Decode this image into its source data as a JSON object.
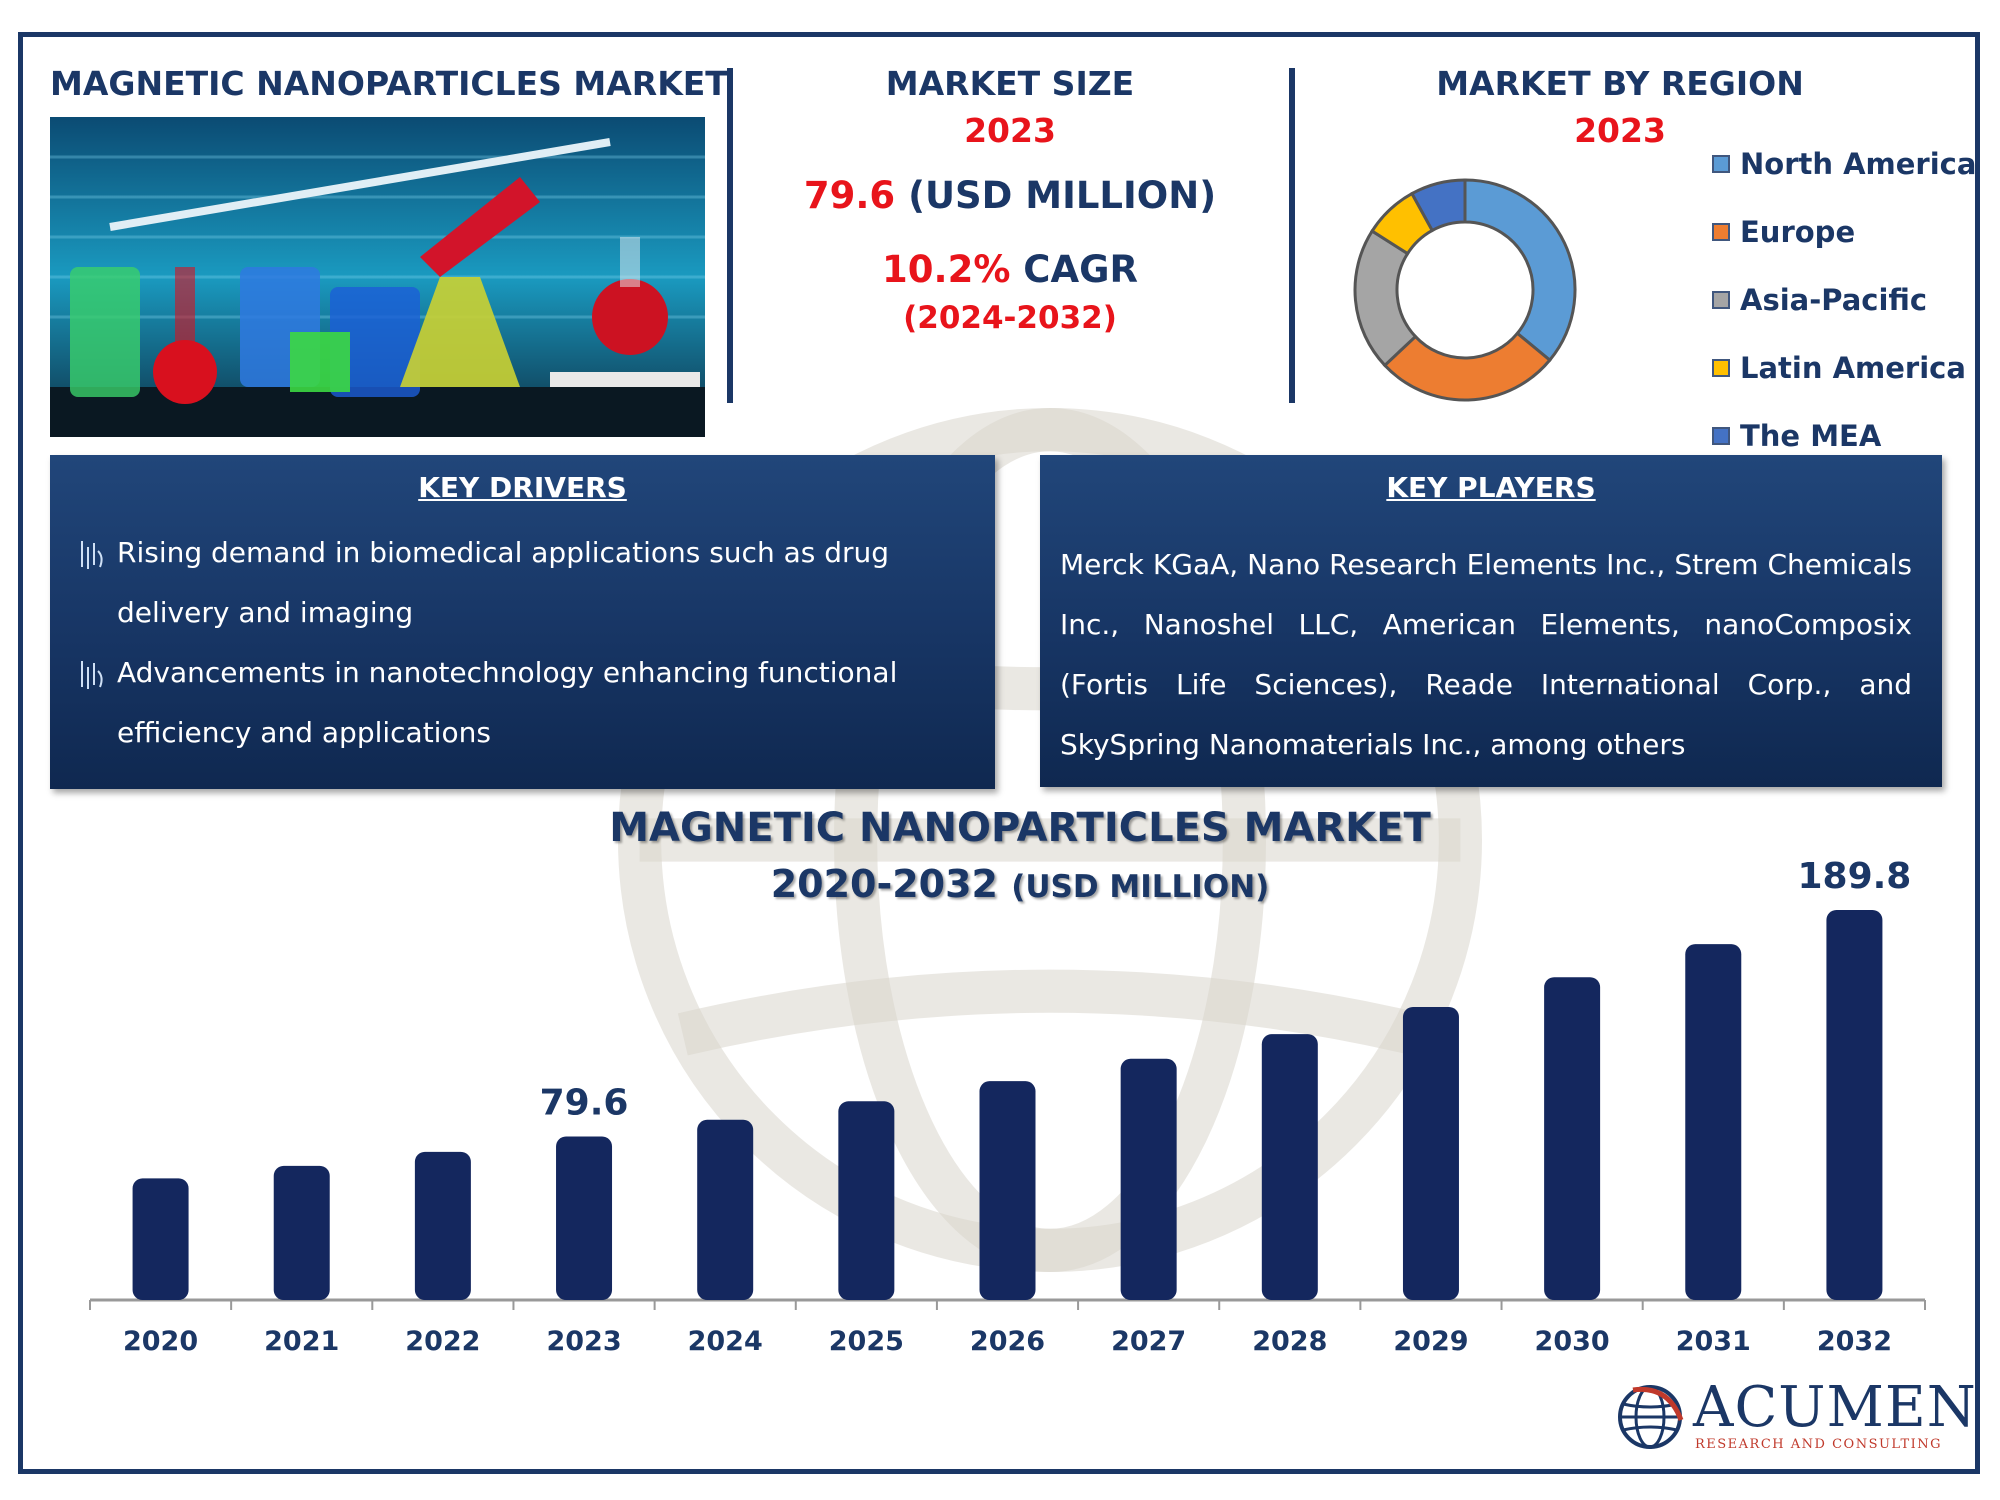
{
  "header": {
    "left_title": "MAGNETIC NANOPARTICLES MARKET",
    "size_title": "MARKET SIZE",
    "size_year": "2023",
    "size_value": "79.6",
    "size_unit": " (USD MILLION)",
    "cagr_value": "10.2%",
    "cagr_label": " CAGR",
    "cagr_period": "(2024-2032)",
    "region_title": "MARKET BY REGION",
    "region_year": "2023"
  },
  "region_legend": [
    {
      "label": "North America",
      "color": "#5b9bd5"
    },
    {
      "label": "Europe",
      "color": "#ed7d31"
    },
    {
      "label": "Asia-Pacific",
      "color": "#a5a5a5"
    },
    {
      "label": "Latin America",
      "color": "#ffc000"
    },
    {
      "label": "The MEA",
      "color": "#4472c4"
    }
  ],
  "donut_shares": [
    0.36,
    0.27,
    0.21,
    0.08,
    0.08
  ],
  "drivers": {
    "title": "KEY DRIVERS",
    "items": [
      "Rising demand in biomedical applications such as drug delivery and imaging",
      "Advancements in nanotechnology enhancing functional efficiency and applications"
    ]
  },
  "players": {
    "title": "KEY PLAYERS",
    "text": "Merck KGaA, Nano Research Elements Inc., Strem Chemicals Inc., Nanoshel LLC, American Elements, nanoComposix (Fortis Life Sciences), Reade International Corp., and SkySpring Nanomaterials Inc., among others"
  },
  "chart_data": {
    "type": "bar",
    "title_line1": "MAGNETIC NANOPARTICLES MARKET",
    "title_line2": "2020-2032",
    "title_unit": "(USD MILLION)",
    "categories": [
      "2020",
      "2021",
      "2022",
      "2023",
      "2024",
      "2025",
      "2026",
      "2027",
      "2028",
      "2029",
      "2030",
      "2031",
      "2032"
    ],
    "values": [
      59.2,
      65.3,
      72.1,
      79.6,
      87.7,
      96.7,
      106.5,
      117.4,
      129.4,
      142.6,
      157.1,
      173.2,
      189.8
    ],
    "data_labels": {
      "3": "79.6",
      "12": "189.8"
    },
    "bar_color": "#14275e",
    "ylim": [
      0,
      200
    ]
  },
  "logo": {
    "name": "ACUMEN",
    "tagline": "RESEARCH AND CONSULTING"
  }
}
